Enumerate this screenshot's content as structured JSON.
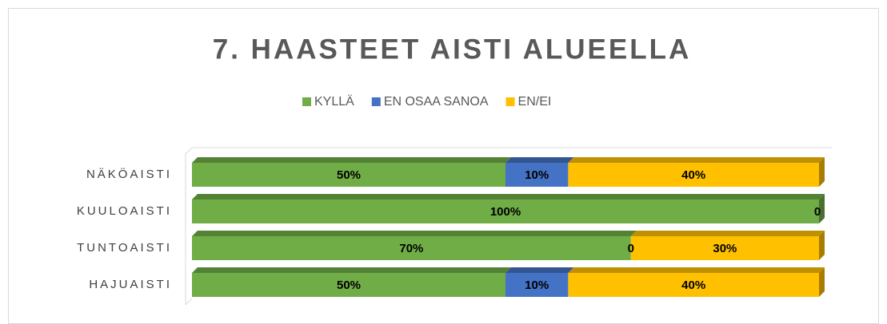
{
  "chart_data": {
    "type": "stacked-bar-3d",
    "orientation": "horizontal",
    "title": "7. HAASTEET AISTI ALUEELLA",
    "categories": [
      "NÄKÖAISTI",
      "KUULOAISTI",
      "TUNTOAISTI",
      "HAJUAISTI"
    ],
    "series": [
      {
        "name": "KYLLÄ",
        "color": "#70ad47",
        "values": [
          50,
          100,
          70,
          50
        ],
        "value_labels": [
          "50%",
          "100%",
          "70%",
          "50%"
        ]
      },
      {
        "name": "EN OSAA SANOA",
        "color": "#4472c4",
        "values": [
          10,
          0,
          0,
          10
        ],
        "value_labels": [
          "10%",
          null,
          "0",
          "10%"
        ]
      },
      {
        "name": "EN/EI",
        "color": "#ffc000",
        "values": [
          40,
          0,
          30,
          40
        ],
        "value_labels": [
          "40%",
          "0",
          "30%",
          "40%"
        ]
      }
    ],
    "legend": "top"
  }
}
